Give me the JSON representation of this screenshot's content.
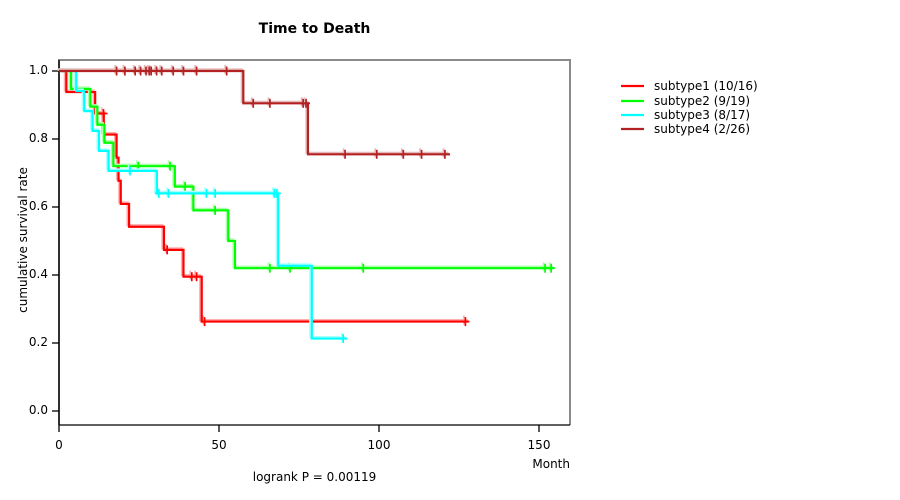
{
  "chart_data": {
    "type": "line",
    "subtype": "kaplan-meier-step",
    "title": "Time to Death",
    "xlabel": "Month",
    "ylabel": "cumulative survival rate",
    "annotation": "logrank P = 0.00119",
    "x_ticks": [
      0,
      50,
      100,
      150
    ],
    "y_ticks": [
      "0.0",
      "0.2",
      "0.4",
      "0.6",
      "0.8",
      "1.0"
    ],
    "xlim": [
      0,
      160
    ],
    "ylim": [
      0.0,
      1.0
    ],
    "grid": "off",
    "legend_position": "right-outside",
    "series": [
      {
        "name": "subtype1",
        "label": "subtype1 (10/16)",
        "color": "#FF0000",
        "steps": [
          [
            0,
            1.0
          ],
          [
            2.3,
            0.938
          ],
          [
            11.3,
            0.875
          ],
          [
            14,
            0.813
          ],
          [
            18,
            0.745
          ],
          [
            18.6,
            0.677
          ],
          [
            19.3,
            0.609
          ],
          [
            21.9,
            0.542
          ],
          [
            32.8,
            0.474
          ],
          [
            38.9,
            0.395
          ],
          [
            44.6,
            0.263
          ]
        ],
        "end_time": 128,
        "censors": [
          [
            13.9,
            0.875
          ],
          [
            33.8,
            0.474
          ],
          [
            41.5,
            0.395
          ],
          [
            43,
            0.395
          ],
          [
            45.5,
            0.263
          ],
          [
            127,
            0.263
          ]
        ]
      },
      {
        "name": "subtype2",
        "label": "subtype2 (9/19)",
        "color": "#00FF00",
        "steps": [
          [
            0,
            1.0
          ],
          [
            3.8,
            0.947
          ],
          [
            9.8,
            0.895
          ],
          [
            12,
            0.842
          ],
          [
            14.2,
            0.789
          ],
          [
            17,
            0.72
          ],
          [
            36.2,
            0.66
          ],
          [
            42,
            0.59
          ],
          [
            52.9,
            0.5
          ],
          [
            55,
            0.42
          ]
        ],
        "end_time": 154.5,
        "censors": [
          [
            24.8,
            0.72
          ],
          [
            34.7,
            0.72
          ],
          [
            39.4,
            0.66
          ],
          [
            48.8,
            0.59
          ],
          [
            65.9,
            0.42
          ],
          [
            72.2,
            0.42
          ],
          [
            95.1,
            0.42
          ],
          [
            151.9,
            0.42
          ],
          [
            153.8,
            0.42
          ]
        ]
      },
      {
        "name": "subtype3",
        "label": "subtype3 (8/17)",
        "color": "#00FFFF",
        "steps": [
          [
            0,
            1.0
          ],
          [
            5.4,
            0.941
          ],
          [
            7.9,
            0.882
          ],
          [
            10.5,
            0.824
          ],
          [
            12.5,
            0.765
          ],
          [
            15.5,
            0.706
          ],
          [
            30.6,
            0.64
          ],
          [
            68.5,
            0.427
          ],
          [
            79,
            0.213
          ]
        ],
        "end_time": 90,
        "censors": [
          [
            22.2,
            0.706
          ],
          [
            31.2,
            0.64
          ],
          [
            34.2,
            0.64
          ],
          [
            46.1,
            0.64
          ],
          [
            48.8,
            0.64
          ],
          [
            67.3,
            0.64
          ],
          [
            68.1,
            0.64
          ],
          [
            88.8,
            0.213
          ]
        ]
      },
      {
        "name": "subtype4",
        "label": "subtype4 (2/26)",
        "color": "#B22222",
        "steps": [
          [
            0,
            1.0
          ],
          [
            57.6,
            0.905
          ],
          [
            77.8,
            0.755
          ]
        ],
        "end_time": 122.2,
        "censors": [
          [
            18,
            1.0
          ],
          [
            20.6,
            1.0
          ],
          [
            23.8,
            1.0
          ],
          [
            25.5,
            1.0
          ],
          [
            27.2,
            1.0
          ],
          [
            28.2,
            1.0
          ],
          [
            28.8,
            1.0
          ],
          [
            30.5,
            1.0
          ],
          [
            32.1,
            1.0
          ],
          [
            35.7,
            1.0
          ],
          [
            38.9,
            1.0
          ],
          [
            43,
            1.0
          ],
          [
            52.4,
            1.0
          ],
          [
            60.7,
            0.905
          ],
          [
            65.9,
            0.905
          ],
          [
            76.3,
            0.905
          ],
          [
            77.2,
            0.905
          ],
          [
            89.4,
            0.755
          ],
          [
            99.3,
            0.755
          ],
          [
            107.6,
            0.755
          ],
          [
            113.3,
            0.755
          ],
          [
            120.6,
            0.755
          ]
        ]
      }
    ]
  }
}
